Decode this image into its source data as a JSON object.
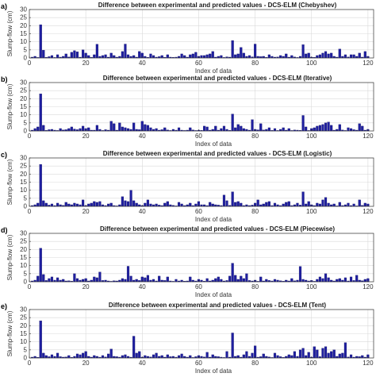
{
  "chart_data": [
    {
      "type": "bar",
      "panel_label": "a)",
      "title": "Difference between experimental and predicted values - DCS-ELM (Chebyshev)",
      "xlabel": "Index of data",
      "ylabel": "Slump-flow (cm)",
      "xlim": [
        0,
        122
      ],
      "ylim": [
        0,
        30
      ],
      "xticks": [
        0,
        20,
        40,
        60,
        80,
        100,
        120
      ],
      "yticks": [
        0,
        5,
        10,
        15,
        20,
        25,
        30
      ],
      "grid": true,
      "values": [
        0.5,
        1.0,
        0.3,
        20.6,
        4.8,
        0.4,
        0.8,
        1.5,
        0.3,
        2.0,
        0.5,
        1.0,
        2.5,
        0.6,
        3.5,
        4.5,
        3.8,
        0.5,
        5.0,
        3.0,
        1.5,
        0.4,
        2.0,
        8.5,
        1.0,
        1.5,
        2.0,
        0.5,
        3.0,
        1.5,
        0.5,
        1.0,
        4.0,
        8.6,
        2.0,
        1.0,
        1.5,
        0.5,
        4.0,
        3.0,
        1.0,
        0.4,
        2.5,
        1.5,
        0.5,
        0.8,
        1.5,
        0.4,
        2.0,
        0.5,
        0.4,
        0.5,
        1.0,
        2.5,
        1.5,
        0.5,
        2.0,
        2.5,
        3.5,
        1.0,
        1.5,
        1.5,
        2.0,
        2.5,
        4.0,
        0.5,
        1.0,
        1.5,
        0.3,
        0.7,
        0.5,
        10.8,
        2.0,
        2.5,
        6.5,
        3.0,
        1.0,
        1.5,
        0.7,
        8.6,
        1.0,
        0.8,
        1.0,
        0.4,
        2.0,
        1.0,
        0.5,
        0.6,
        1.5,
        1.0,
        2.5,
        0.5,
        1.5,
        0.6,
        0.3,
        1.0,
        8.2,
        2.5,
        3.0,
        0.5,
        0.4,
        1.5,
        2.0,
        3.0,
        4.0,
        2.5,
        3.0,
        1.0,
        0.5,
        5.5,
        1.0,
        2.0,
        0.6,
        2.0,
        2.0,
        1.0,
        3.0,
        0.5,
        4.0,
        1.0
      ]
    },
    {
      "type": "bar",
      "panel_label": "b)",
      "title": "Difference between experimental and predicted values - DCS-ELM (Iterative)",
      "xlabel": "Index of data",
      "ylabel": "Slump-flow (cm)",
      "xlim": [
        0,
        122
      ],
      "ylim": [
        0,
        30
      ],
      "xticks": [
        0,
        20,
        40,
        60,
        80,
        100,
        120
      ],
      "yticks": [
        0,
        5,
        10,
        15,
        20,
        25,
        30
      ],
      "grid": true,
      "values": [
        0.5,
        1.5,
        2.5,
        23.0,
        3.5,
        0.4,
        0.8,
        1.0,
        0.5,
        0.3,
        1.5,
        0.6,
        0.8,
        1.5,
        2.5,
        1.2,
        0.8,
        1.5,
        3.0,
        1.5,
        2.0,
        0.5,
        0.5,
        3.5,
        1.0,
        0.3,
        0.8,
        0.5,
        6.0,
        4.5,
        0.5,
        5.0,
        2.5,
        2.0,
        1.5,
        1.0,
        5.0,
        1.0,
        0.8,
        6.0,
        4.0,
        3.5,
        2.0,
        1.0,
        1.5,
        0.5,
        0.8,
        2.0,
        0.6,
        0.3,
        1.0,
        0.5,
        2.0,
        0.5,
        0.3,
        0.5,
        2.0,
        0.6,
        0.3,
        0.5,
        0.4,
        3.0,
        2.5,
        0.5,
        1.0,
        3.0,
        0.5,
        1.5,
        3.0,
        1.0,
        0.4,
        10.5,
        2.0,
        4.0,
        3.0,
        1.5,
        1.0,
        0.5,
        7.0,
        1.0,
        0.7,
        4.5,
        0.6,
        1.0,
        2.0,
        0.4,
        1.5,
        0.3,
        1.0,
        2.0,
        0.5,
        1.5,
        0.3,
        0.6,
        0.5,
        0.4,
        9.6,
        2.5,
        0.3,
        1.5,
        2.0,
        3.0,
        3.5,
        4.0,
        5.0,
        5.5,
        3.5,
        0.5,
        1.0,
        4.0,
        0.6,
        0.3,
        2.0,
        1.5,
        0.8,
        0.5,
        4.5,
        3.0,
        0.5,
        1.0
      ]
    },
    {
      "type": "bar",
      "panel_label": "c)",
      "title": "Difference between experimental and predicted values - DCS-ELM (Logistic)",
      "xlabel": "Index of data",
      "ylabel": "Slump-flow (cm)",
      "xlim": [
        0,
        122
      ],
      "ylim": [
        0,
        30
      ],
      "xticks": [
        0,
        20,
        40,
        60,
        80,
        100,
        120
      ],
      "yticks": [
        0,
        5,
        10,
        15,
        20,
        25,
        30
      ],
      "grid": true,
      "values": [
        0.5,
        1.0,
        2.0,
        26.0,
        3.5,
        2.0,
        0.8,
        1.5,
        0.5,
        2.0,
        1.0,
        0.6,
        2.5,
        1.5,
        1.0,
        2.0,
        1.5,
        1.0,
        4.0,
        0.5,
        1.5,
        2.0,
        3.0,
        2.5,
        3.0,
        1.0,
        0.5,
        1.5,
        2.0,
        0.5,
        0.3,
        1.0,
        6.0,
        3.5,
        3.0,
        10.0,
        3.5,
        2.0,
        1.0,
        0.5,
        2.0,
        4.0,
        1.5,
        1.0,
        1.5,
        0.8,
        0.5,
        2.0,
        3.0,
        1.0,
        0.6,
        0.3,
        2.5,
        1.5,
        0.5,
        1.0,
        2.0,
        0.5,
        1.5,
        3.0,
        1.0,
        1.0,
        0.5,
        2.5,
        1.5,
        1.0,
        0.8,
        0.5,
        7.0,
        3.5,
        0.6,
        9.0,
        2.5,
        3.0,
        2.0,
        0.5,
        1.0,
        0.5,
        0.8,
        2.0,
        4.0,
        1.0,
        1.5,
        2.5,
        3.0,
        0.5,
        2.0,
        1.0,
        0.5,
        1.5,
        2.5,
        3.0,
        0.5,
        1.0,
        2.0,
        0.8,
        9.0,
        1.5,
        3.0,
        1.0,
        0.5,
        2.0,
        1.5,
        4.0,
        5.5,
        2.0,
        1.0,
        1.5,
        0.3,
        2.5,
        0.5,
        1.0,
        2.0,
        0.5,
        1.5,
        0.3,
        4.0,
        0.6,
        2.0,
        1.5
      ]
    },
    {
      "type": "bar",
      "panel_label": "d)",
      "title": "Difference between experimental and predicted values - DCS-ELM (Piecewise)",
      "xlabel": "Index of data",
      "ylabel": "Slump-flow (cm)",
      "xlim": [
        0,
        122
      ],
      "ylim": [
        0,
        30
      ],
      "xticks": [
        0,
        20,
        40,
        60,
        80,
        100,
        120
      ],
      "yticks": [
        0,
        5,
        10,
        15,
        20,
        25,
        30
      ],
      "grid": true,
      "values": [
        0.5,
        1.0,
        3.5,
        20.8,
        4.5,
        0.8,
        2.0,
        3.0,
        1.0,
        2.5,
        1.0,
        1.5,
        0.5,
        0.6,
        0.4,
        5.0,
        2.0,
        1.0,
        1.5,
        2.0,
        0.5,
        1.0,
        3.0,
        2.5,
        6.0,
        0.8,
        1.0,
        0.5,
        0.3,
        0.6,
        0.5,
        1.0,
        2.0,
        1.5,
        9.6,
        3.5,
        1.0,
        1.5,
        0.8,
        3.0,
        2.5,
        4.0,
        1.0,
        1.5,
        0.5,
        3.5,
        1.0,
        0.8,
        3.0,
        0.5,
        0.3,
        1.5,
        0.5,
        1.0,
        0.4,
        0.5,
        3.0,
        1.0,
        0.5,
        1.5,
        1.0,
        0.4,
        2.0,
        0.5,
        1.0,
        2.0,
        3.0,
        1.5,
        0.5,
        0.8,
        3.5,
        11.5,
        4.0,
        1.5,
        3.5,
        2.0,
        5.0,
        0.8,
        0.5,
        1.0,
        0.3,
        3.0,
        0.5,
        1.5,
        0.8,
        0.5,
        1.5,
        1.0,
        0.6,
        0.4,
        1.0,
        0.5,
        2.0,
        0.6,
        1.0,
        9.5,
        1.5,
        1.0,
        0.5,
        0.8,
        0.3,
        1.5,
        3.0,
        2.0,
        5.0,
        2.5,
        1.0,
        0.5,
        1.5,
        2.0,
        1.0,
        2.5,
        0.5,
        3.0,
        0.8,
        4.0,
        1.0,
        0.6,
        1.5,
        2.0
      ]
    },
    {
      "type": "bar",
      "panel_label": "e)",
      "title": "Difference between experimental and predicted values - DCS-ELM (Tent)",
      "xlabel": "Index of data",
      "ylabel": "Slump-flow (cm)",
      "xlim": [
        0,
        122
      ],
      "ylim": [
        0,
        30
      ],
      "xticks": [
        0,
        20,
        40,
        60,
        80,
        100,
        120
      ],
      "yticks": [
        0,
        5,
        10,
        15,
        20,
        25,
        30
      ],
      "grid": true,
      "values": [
        0.5,
        1.0,
        0.4,
        23.0,
        3.0,
        1.5,
        0.8,
        2.0,
        1.0,
        3.0,
        0.8,
        0.5,
        0.6,
        1.5,
        0.4,
        1.0,
        2.5,
        2.0,
        3.0,
        4.0,
        1.0,
        0.5,
        1.5,
        1.0,
        0.5,
        1.5,
        0.6,
        2.5,
        5.5,
        1.0,
        0.8,
        0.5,
        1.5,
        2.0,
        1.0,
        0.5,
        13.5,
        3.0,
        4.0,
        0.5,
        1.5,
        1.0,
        0.6,
        2.0,
        3.0,
        1.0,
        1.5,
        0.5,
        2.0,
        0.8,
        1.0,
        0.5,
        1.5,
        2.5,
        1.0,
        0.5,
        1.5,
        0.3,
        0.8,
        1.5,
        1.0,
        0.6,
        3.5,
        0.5,
        2.0,
        1.0,
        0.8,
        0.5,
        0.3,
        4.0,
        0.5,
        15.5,
        1.0,
        1.5,
        0.5,
        2.0,
        4.0,
        1.0,
        3.0,
        7.5,
        0.5,
        0.8,
        2.5,
        1.0,
        0.6,
        0.3,
        3.0,
        1.5,
        0.8,
        0.4,
        1.0,
        2.0,
        1.5,
        4.0,
        1.0,
        5.0,
        6.0,
        1.5,
        3.5,
        0.5,
        7.0,
        5.0,
        0.8,
        6.0,
        7.0,
        3.0,
        4.0,
        5.0,
        1.0,
        2.5,
        3.0,
        9.5,
        0.6,
        2.0,
        0.5,
        1.0,
        0.8,
        1.5,
        0.5,
        2.0
      ]
    }
  ]
}
